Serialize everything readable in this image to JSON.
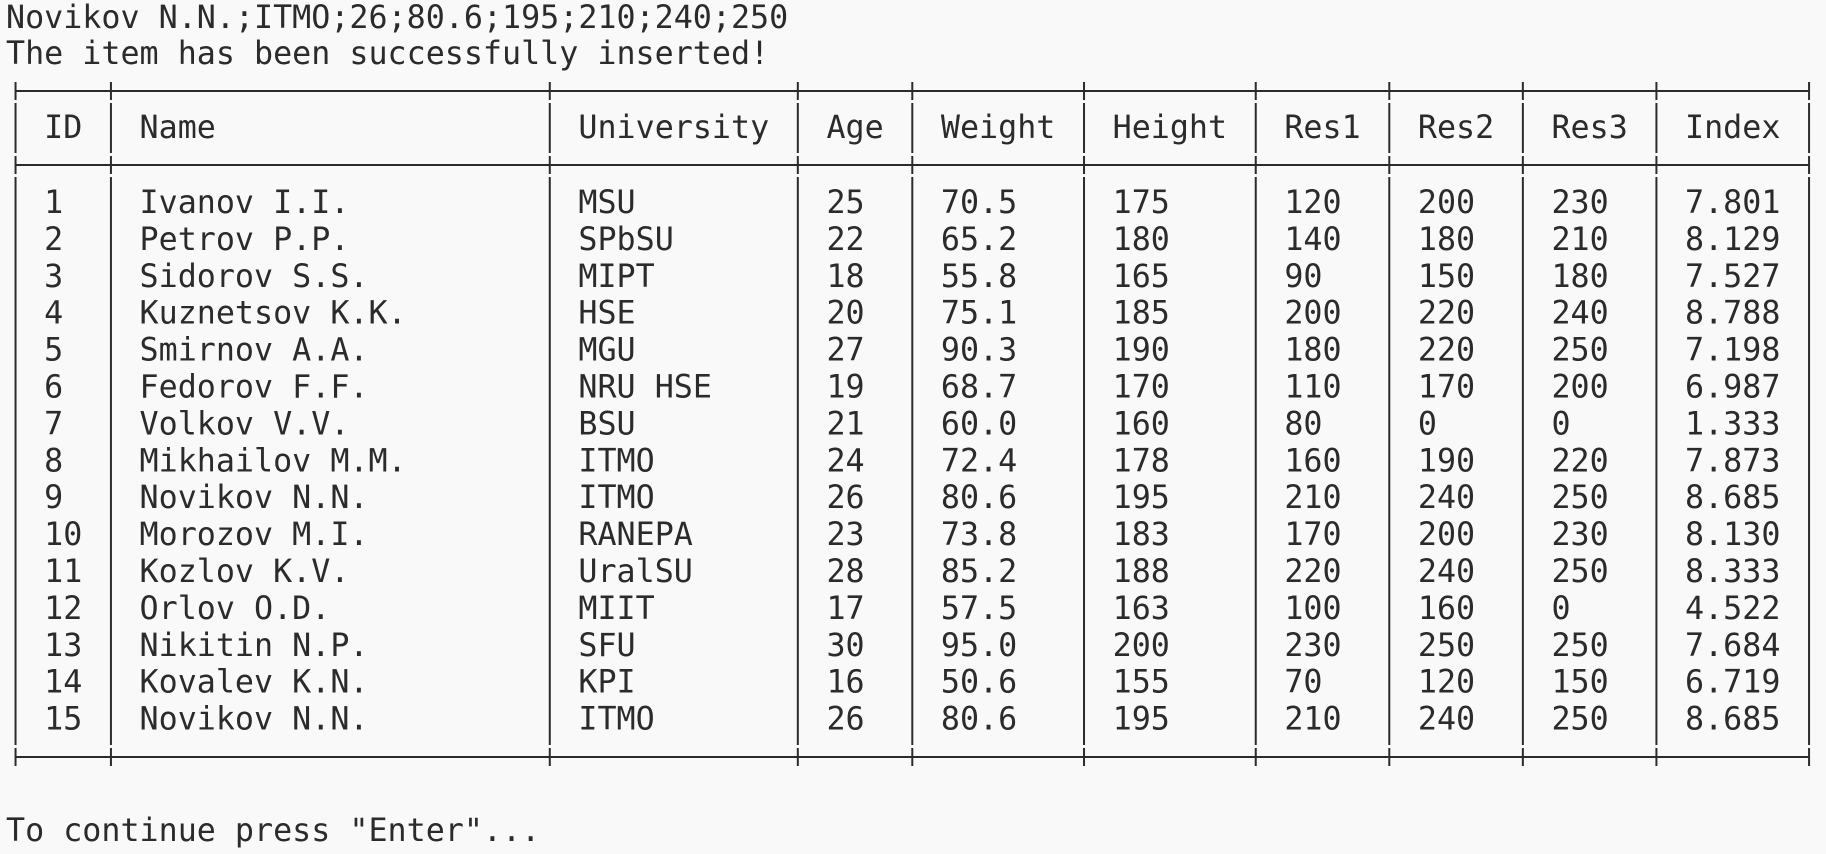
{
  "output": {
    "echo": "Novikov N.N.;ITMO;26;80.6;195;210;240;250",
    "message": "The item has been successfully inserted!"
  },
  "table": {
    "headers": [
      "ID",
      "Name",
      "University",
      "Age",
      "Weight",
      "Height",
      "Res1",
      "Res2",
      "Res3",
      "Index"
    ],
    "rows": [
      [
        "1",
        "Ivanov I.I.",
        "MSU",
        "25",
        "70.5",
        "175",
        "120",
        "200",
        "230",
        "7.801"
      ],
      [
        "2",
        "Petrov P.P.",
        "SPbSU",
        "22",
        "65.2",
        "180",
        "140",
        "180",
        "210",
        "8.129"
      ],
      [
        "3",
        "Sidorov S.S.",
        "MIPT",
        "18",
        "55.8",
        "165",
        "90",
        "150",
        "180",
        "7.527"
      ],
      [
        "4",
        "Kuznetsov K.K.",
        "HSE",
        "20",
        "75.1",
        "185",
        "200",
        "220",
        "240",
        "8.788"
      ],
      [
        "5",
        "Smirnov A.A.",
        "MGU",
        "27",
        "90.3",
        "190",
        "180",
        "220",
        "250",
        "7.198"
      ],
      [
        "6",
        "Fedorov F.F.",
        "NRU HSE",
        "19",
        "68.7",
        "170",
        "110",
        "170",
        "200",
        "6.987"
      ],
      [
        "7",
        "Volkov V.V.",
        "BSU",
        "21",
        "60.0",
        "160",
        "80",
        "0",
        "0",
        "1.333"
      ],
      [
        "8",
        "Mikhailov M.M.",
        "ITMO",
        "24",
        "72.4",
        "178",
        "160",
        "190",
        "220",
        "7.873"
      ],
      [
        "9",
        "Novikov N.N.",
        "ITMO",
        "26",
        "80.6",
        "195",
        "210",
        "240",
        "250",
        "8.685"
      ],
      [
        "10",
        "Morozov M.I.",
        "RANEPA",
        "23",
        "73.8",
        "183",
        "170",
        "200",
        "230",
        "8.130"
      ],
      [
        "11",
        "Kozlov K.V.",
        "UralSU",
        "28",
        "85.2",
        "188",
        "220",
        "240",
        "250",
        "8.333"
      ],
      [
        "12",
        "Orlov O.D.",
        "MIIT",
        "17",
        "57.5",
        "163",
        "100",
        "160",
        "0",
        "4.522"
      ],
      [
        "13",
        "Nikitin N.P.",
        "SFU",
        "30",
        "95.0",
        "200",
        "230",
        "250",
        "250",
        "7.684"
      ],
      [
        "14",
        "Kovalev K.N.",
        "KPI",
        "16",
        "50.6",
        "155",
        "70",
        "120",
        "150",
        "6.719"
      ],
      [
        "15",
        "Novikov N.N.",
        "ITMO",
        "26",
        "80.6",
        "195",
        "210",
        "240",
        "250",
        "8.685"
      ]
    ]
  },
  "prompt": "To continue press \"Enter\"..."
}
